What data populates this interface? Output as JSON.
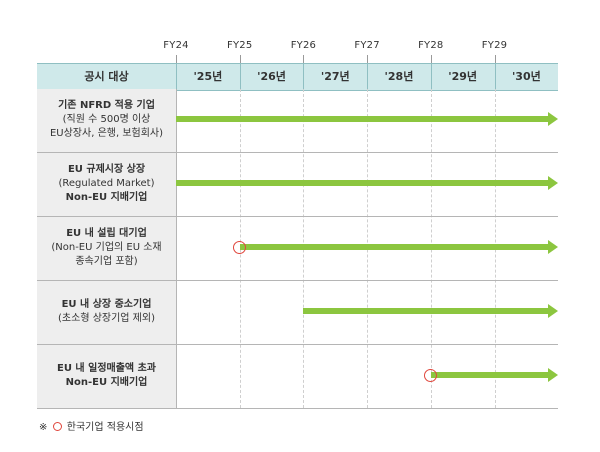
{
  "fiscal_years": [
    "FY24",
    "FY25",
    "FY26",
    "FY27",
    "FY28",
    "FY29"
  ],
  "header": {
    "target_label": "공시 대상",
    "years": [
      "'25년",
      "'26년",
      "'27년",
      "'28년",
      "'29년",
      "'30년"
    ]
  },
  "rows": [
    {
      "lines": [
        {
          "text": "기존 NFRD 적용 기업",
          "bold": true
        },
        {
          "text": "(직원 수 500명 이상",
          "bold": false
        },
        {
          "text": "EU상장사, 은행, 보험회사)",
          "bold": false
        }
      ],
      "start": "FY24",
      "korea_start_marked": false
    },
    {
      "lines": [
        {
          "text": "EU 규제시장 상장",
          "bold": true
        },
        {
          "text": "(Regulated Market)",
          "bold": false
        },
        {
          "text": "Non-EU 지배기업",
          "bold": true
        }
      ],
      "start": "FY24",
      "korea_start_marked": false
    },
    {
      "lines": [
        {
          "text": "EU 내 설립 대기업",
          "bold": true
        },
        {
          "text": "(Non-EU 기업의 EU 소재",
          "bold": false
        },
        {
          "text": "종속기업 포함)",
          "bold": false
        }
      ],
      "start": "FY25",
      "korea_start_marked": true
    },
    {
      "lines": [
        {
          "text": "EU 내 상장 중소기업",
          "bold": true
        },
        {
          "text": "(초소형 상장기업 제외)",
          "bold": false
        }
      ],
      "start": "FY26",
      "korea_start_marked": false
    },
    {
      "lines": [
        {
          "text": "EU 내 일정매출액 초과",
          "bold": true
        },
        {
          "text": "Non-EU 지배기업",
          "bold": true
        }
      ],
      "start": "FY28",
      "korea_start_marked": true
    }
  ],
  "footnote": {
    "prefix": "※",
    "text": "한국기업 적용시점"
  },
  "colors": {
    "header_bg": "#cfe9ea",
    "label_bg": "#eeeeee",
    "arrow": "#8cc63f",
    "marker": "#e0463c"
  }
}
